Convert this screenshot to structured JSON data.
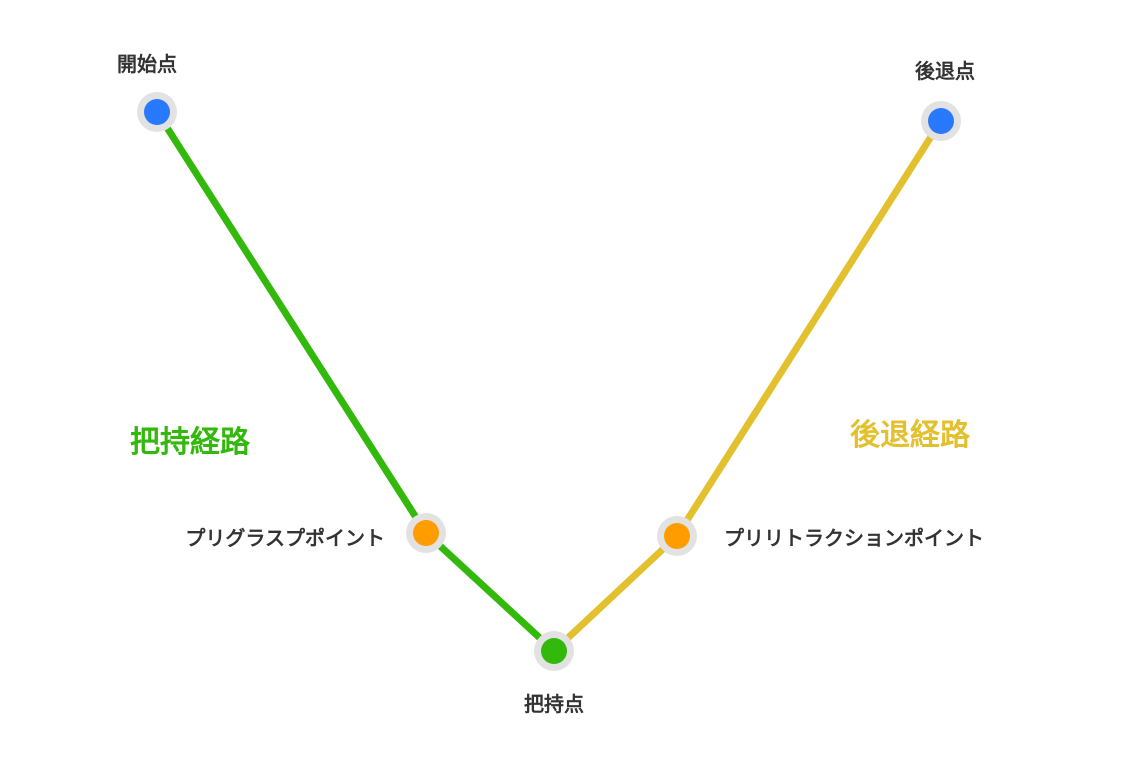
{
  "colors": {
    "grasp_path": "#33b80c",
    "retreat_path": "#e3c02e",
    "endpoint": "#2979ff",
    "waypoint": "#ff9c00",
    "grasp_point": "#33b80c",
    "halo": "#e2e2e2",
    "text": "#333333"
  },
  "points": {
    "start": {
      "label": "開始点",
      "kind": "endpoint"
    },
    "pregrasp": {
      "label": "プリグラスプポイント",
      "kind": "waypoint"
    },
    "grasp": {
      "label": "把持点",
      "kind": "grasp_point"
    },
    "preretract": {
      "label": "プリリトラクションポイント",
      "kind": "waypoint"
    },
    "retreat": {
      "label": "後退点",
      "kind": "endpoint"
    }
  },
  "paths": {
    "grasp": {
      "label": "把持経路",
      "sequence": [
        "start",
        "pregrasp",
        "grasp"
      ]
    },
    "retreat": {
      "label": "後退経路",
      "sequence": [
        "grasp",
        "preretract",
        "retreat"
      ]
    }
  }
}
